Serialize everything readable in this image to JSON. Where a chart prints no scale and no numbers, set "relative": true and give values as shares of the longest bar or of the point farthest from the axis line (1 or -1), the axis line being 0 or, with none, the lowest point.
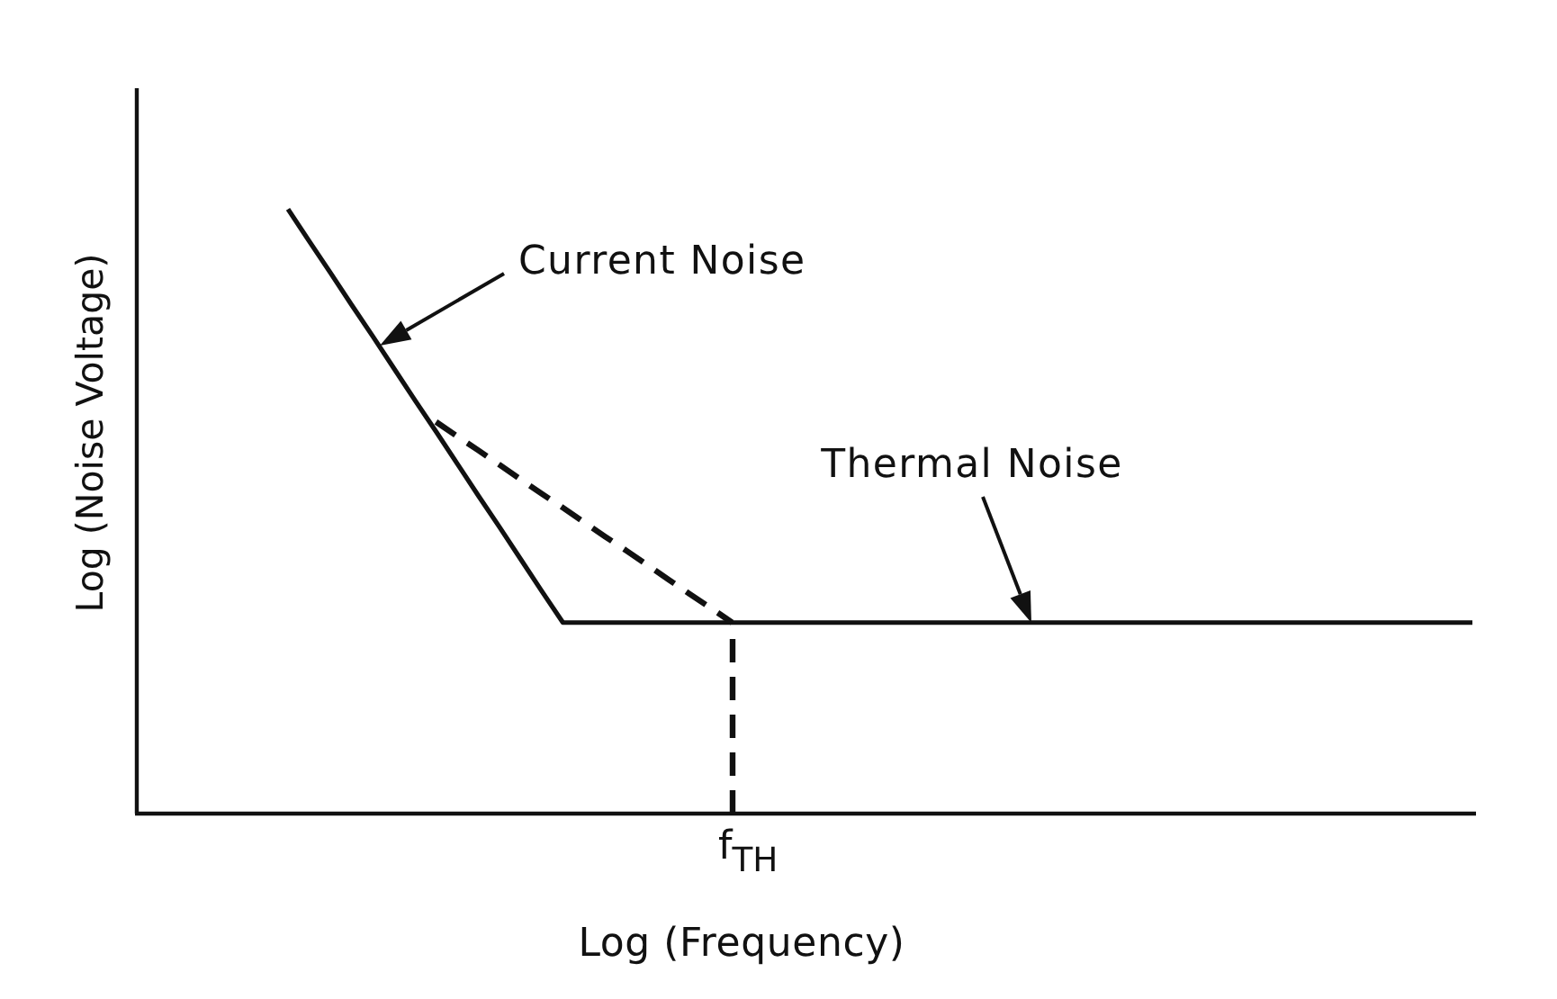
{
  "chart_data": {
    "type": "line",
    "relative": true,
    "xlabel": "Log (Frequency)",
    "ylabel": "Log (Noise Voltage)",
    "categories": [
      null,
      null,
      null,
      null,
      null,
      null,
      null,
      null,
      null,
      null,
      null,
      null,
      null,
      null,
      null,
      null,
      null,
      null,
      null,
      null,
      null,
      null,
      null,
      null,
      null,
      null,
      null,
      null,
      null,
      null,
      null,
      null,
      null,
      null,
      null,
      null,
      null,
      null,
      null,
      null,
      null,
      null,
      null,
      null,
      null,
      null,
      null,
      null,
      null,
      null,
      null,
      null,
      null,
      null,
      null,
      null,
      null
    ],
    "series": [
      {
        "color": "#111111",
        "line_style": "solid",
        "values": [
          1,
          0.947,
          0.895,
          0.842,
          0.79,
          0.737,
          0.684,
          0.632,
          0.579,
          0.526,
          0.474,
          0.421,
          0.368,
          0.316,
          0.316,
          0.316,
          0.316,
          0.316,
          0.316,
          0.316,
          0.316,
          0.316,
          0.316,
          0.316,
          0.316,
          0.316,
          0.316,
          0.316,
          0.316,
          0.316,
          0.316,
          0.316,
          0.316,
          0.316,
          0.316,
          0.316,
          0.316,
          0.316,
          0.316,
          0.316,
          0.316,
          0.316,
          0.316,
          0.316,
          0.316,
          0.316,
          0.316,
          0.316,
          0.316,
          0.316,
          0.316,
          0.316,
          0.316,
          0.316,
          0.316,
          0.316,
          0.316
        ]
      },
      {
        "color": "#111111",
        "line_style": "dashed",
        "values": [
          null,
          null,
          null,
          null,
          null,
          null,
          null,
          0.648,
          0.624,
          0.601,
          0.577,
          0.553,
          0.529,
          0.506,
          0.482,
          0.458,
          0.435,
          0.411,
          0.387,
          0.363,
          0.34,
          0.316,
          null,
          null,
          null,
          null,
          null,
          null,
          null,
          null,
          null,
          null,
          null,
          null,
          null,
          null,
          null,
          null,
          null,
          null,
          null,
          null,
          null,
          null,
          null,
          null,
          null,
          null,
          null,
          null,
          null,
          null,
          null,
          null,
          null,
          null,
          null
        ]
      }
    ],
    "annotations": [
      "Current Noise",
      "Thermal Noise",
      "f$_{TH}$"
    ]
  }
}
